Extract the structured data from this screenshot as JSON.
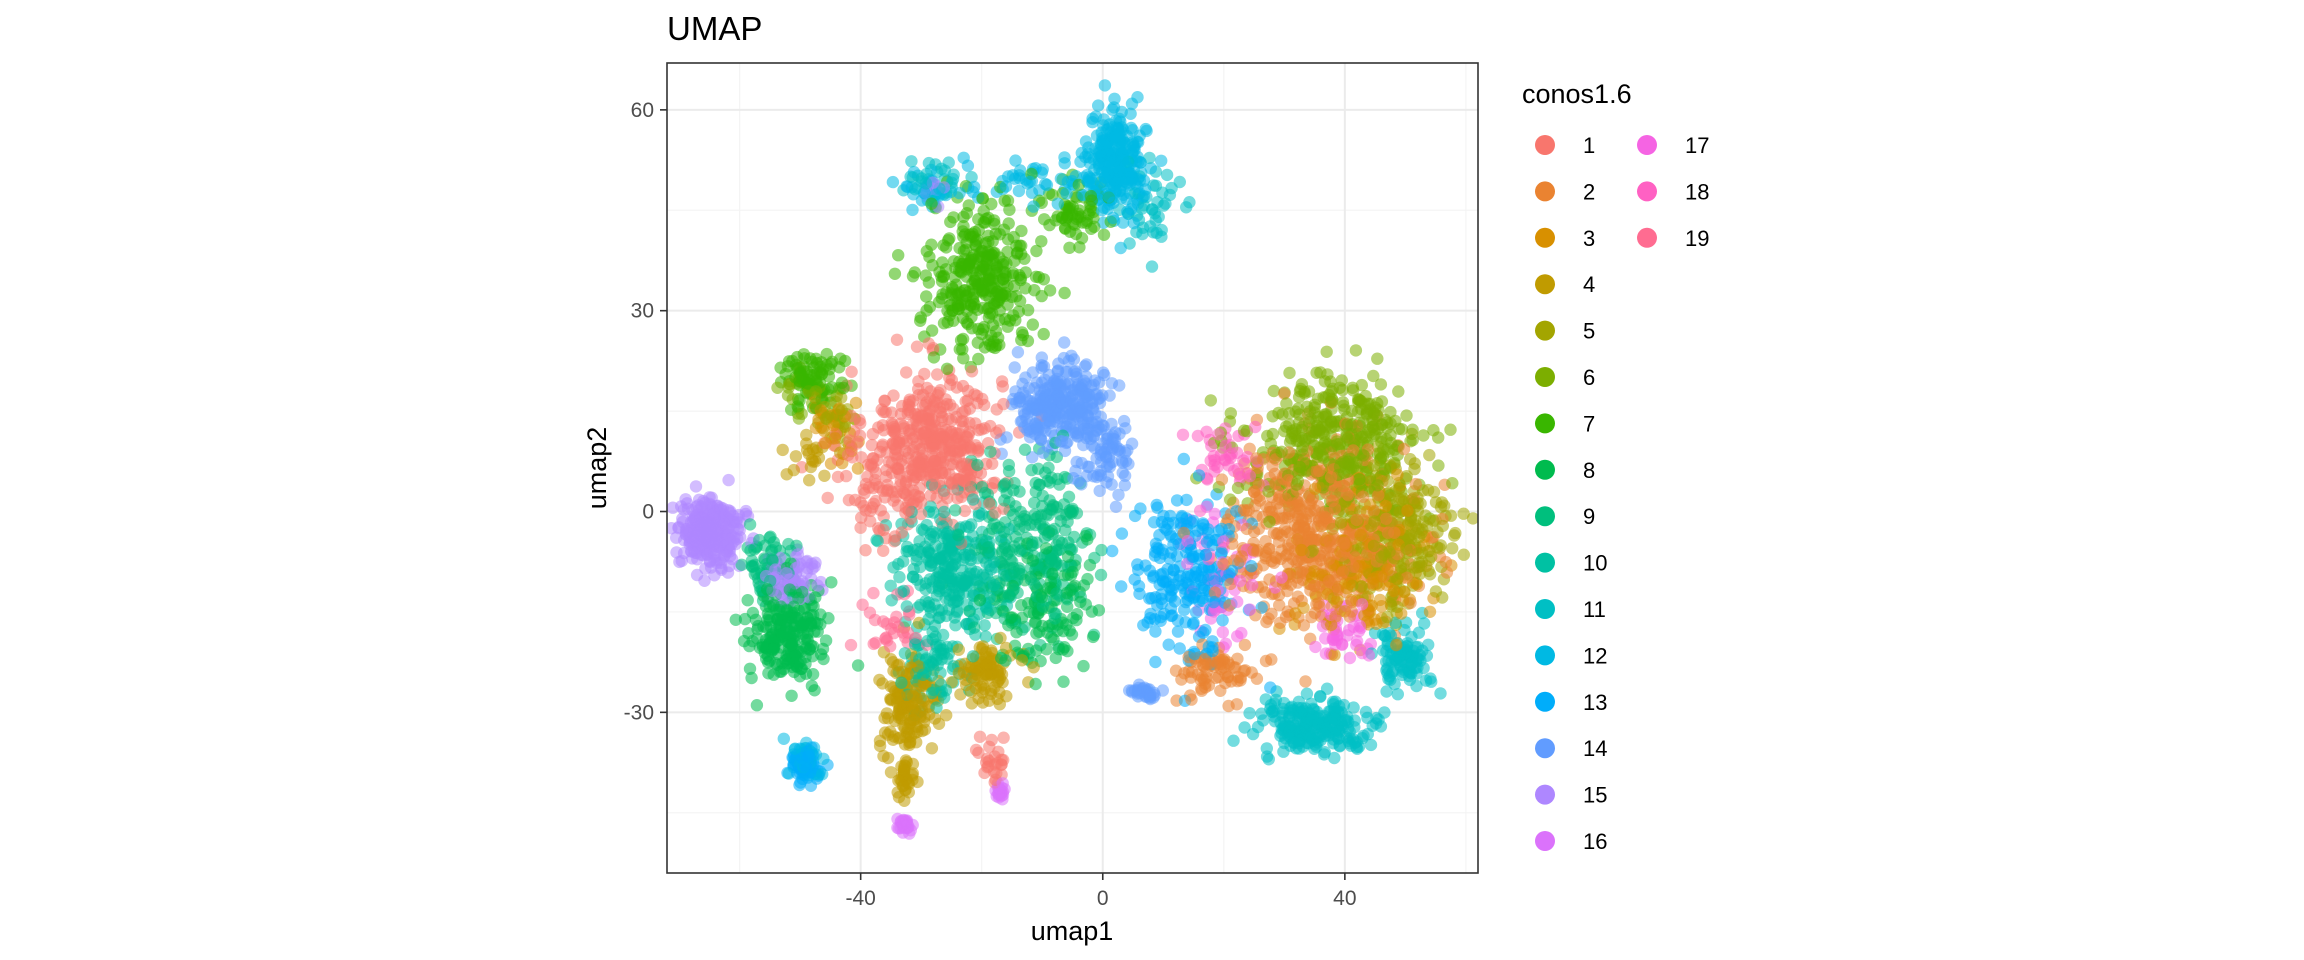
{
  "chart_data": {
    "type": "scatter",
    "title": "UMAP",
    "xlabel": "umap1",
    "ylabel": "umap2",
    "xlim": [
      -72,
      62
    ],
    "ylim": [
      -54,
      67
    ],
    "xticks": [
      -40,
      0,
      40
    ],
    "yticks": [
      -30,
      0,
      30,
      60
    ],
    "xtick_labels": [
      "-40",
      "0",
      "40"
    ],
    "ytick_labels": [
      "-30",
      "0",
      "30",
      "60"
    ],
    "grid": true,
    "legend_title": "conos1.6",
    "legend_position": "right",
    "series": [
      {
        "name": "1",
        "color": "#F8766D",
        "clusters": [
          [
            -28,
            10,
            9,
            9,
            420
          ],
          [
            -38,
            2,
            7,
            7,
            50
          ],
          [
            -18,
            -37,
            2,
            3,
            25
          ]
        ]
      },
      {
        "name": "2",
        "color": "#EA8331",
        "clusters": [
          [
            35,
            -3,
            12,
            11,
            520
          ],
          [
            19,
            -24,
            5,
            3,
            70
          ]
        ]
      },
      {
        "name": "3",
        "color": "#D89000",
        "clusters": [
          [
            43,
            -8,
            9,
            9,
            180
          ],
          [
            -44,
            12,
            4,
            5,
            30
          ]
        ]
      },
      {
        "name": "4",
        "color": "#C09B00",
        "clusters": [
          [
            -32,
            -29,
            4,
            6,
            150
          ],
          [
            -19,
            -24,
            4,
            3,
            90
          ],
          [
            -33,
            -40,
            1.5,
            3,
            30
          ],
          [
            -48,
            8,
            3,
            3,
            20
          ]
        ]
      },
      {
        "name": "5",
        "color": "#A3A500",
        "clusters": [
          [
            48,
            -3,
            8,
            10,
            260
          ],
          [
            -44,
            13,
            3,
            3,
            30
          ]
        ]
      },
      {
        "name": "6",
        "color": "#7CAE00",
        "clusters": [
          [
            38,
            10,
            12,
            8,
            380
          ],
          [
            -48,
            18,
            4,
            3,
            30
          ]
        ]
      },
      {
        "name": "7",
        "color": "#39B600",
        "clusters": [
          [
            -20,
            35,
            7,
            9,
            320
          ],
          [
            -5,
            45,
            4,
            4,
            60
          ],
          [
            -48,
            20,
            4,
            4,
            80
          ]
        ]
      },
      {
        "name": "8",
        "color": "#00BB4E",
        "clusters": [
          [
            -52,
            -18,
            5,
            6,
            220
          ],
          [
            -10,
            -15,
            6,
            8,
            120
          ]
        ]
      },
      {
        "name": "9",
        "color": "#00BF7D",
        "clusters": [
          [
            -12,
            -5,
            8,
            10,
            260
          ],
          [
            -55,
            -8,
            4,
            4,
            60
          ]
        ]
      },
      {
        "name": "10",
        "color": "#00C1A3",
        "clusters": [
          [
            -25,
            -8,
            7,
            7,
            260
          ],
          [
            -28,
            -22,
            4,
            5,
            80
          ]
        ]
      },
      {
        "name": "11",
        "color": "#00BFC4",
        "clusters": [
          [
            35,
            -32,
            8,
            3,
            230
          ],
          [
            50,
            -22,
            4,
            4,
            100
          ],
          [
            -28,
            50,
            4,
            3,
            30
          ],
          [
            8,
            45,
            4,
            5,
            40
          ]
        ]
      },
      {
        "name": "12",
        "color": "#00B9E3",
        "clusters": [
          [
            2,
            52,
            4,
            6,
            250
          ],
          [
            -12,
            50,
            10,
            3,
            50
          ],
          [
            -28,
            48,
            4,
            2,
            30
          ],
          [
            -49,
            -37,
            2,
            2,
            50
          ]
        ]
      },
      {
        "name": "13",
        "color": "#00ADFA",
        "clusters": [
          [
            14,
            -10,
            7,
            10,
            220
          ],
          [
            -49,
            -38,
            2,
            2,
            70
          ]
        ]
      },
      {
        "name": "14",
        "color": "#619CFF",
        "clusters": [
          [
            -7,
            16,
            6,
            5,
            280
          ],
          [
            0,
            8,
            4,
            5,
            80
          ],
          [
            7,
            -27,
            2,
            1,
            30
          ]
        ]
      },
      {
        "name": "15",
        "color": "#AE87FF",
        "clusters": [
          [
            -65,
            -3,
            4,
            4,
            300
          ],
          [
            -52,
            -10,
            4,
            3,
            70
          ],
          [
            -28,
            48,
            2,
            1.5,
            10
          ]
        ]
      },
      {
        "name": "16",
        "color": "#DB72FB",
        "clusters": [
          [
            -33,
            -47,
            0.9,
            1,
            30
          ],
          [
            -17,
            -42,
            0.8,
            1,
            20
          ]
        ]
      },
      {
        "name": "17",
        "color": "#F564E3",
        "clusters": [
          [
            20,
            -10,
            6,
            8,
            60
          ],
          [
            40,
            -18,
            4,
            4,
            40
          ]
        ]
      },
      {
        "name": "18",
        "color": "#FF61C3",
        "clusters": [
          [
            20,
            8,
            5,
            4,
            40
          ]
        ]
      },
      {
        "name": "19",
        "color": "#FF6C91",
        "clusters": [
          [
            -35,
            -18,
            4,
            4,
            30
          ]
        ]
      }
    ]
  }
}
